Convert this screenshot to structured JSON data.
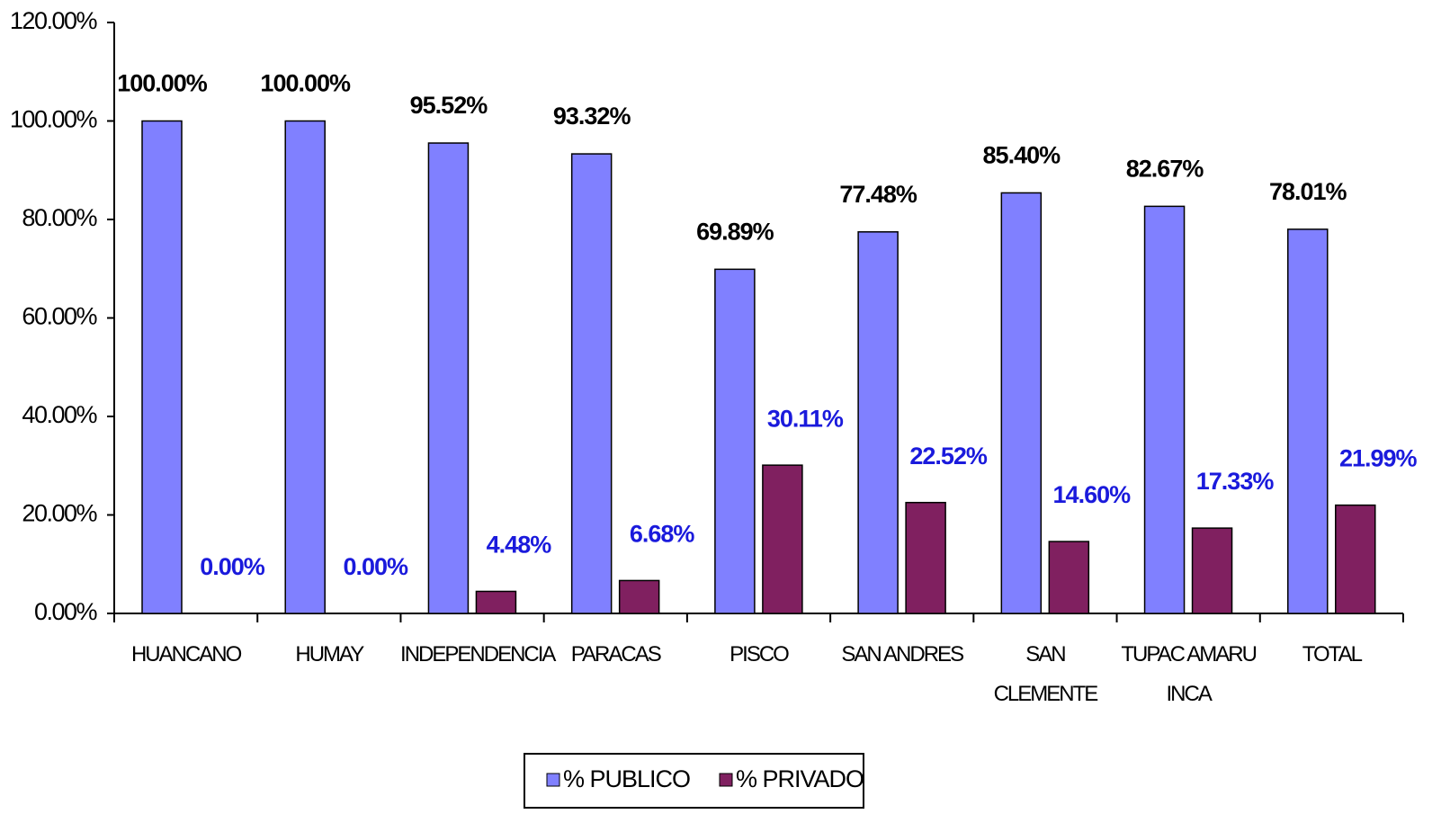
{
  "chart_data": {
    "type": "bar",
    "categories": [
      "HUANCANO",
      "HUMAY",
      "INDEPENDENCIA",
      "PARACAS",
      "PISCO",
      "SAN ANDRES",
      "SAN CLEMENTE",
      "TUPAC AMARU INCA",
      "TOTAL"
    ],
    "series": [
      {
        "name": "% PUBLICO",
        "color": "#8080ff",
        "label_color": "#000000",
        "values": [
          100,
          100,
          95.52,
          93.32,
          69.89,
          77.48,
          85.4,
          82.67,
          78.01
        ],
        "value_labels": [
          "100.00%",
          "100.00%",
          "95.52%",
          "93.32%",
          "69.89%",
          "77.48%",
          "85.40%",
          "82.67%",
          "78.01%"
        ]
      },
      {
        "name": "% PRIVADO",
        "color": "#802060",
        "label_color": "#1a1adc",
        "values": [
          0,
          0,
          4.48,
          6.68,
          30.11,
          22.52,
          14.6,
          17.33,
          21.99
        ],
        "value_labels": [
          "0.00%",
          "0.00%",
          "4.48%",
          "6.68%",
          "30.11%",
          "22.52%",
          "14.60%",
          "17.33%",
          "21.99%"
        ]
      }
    ],
    "ylim": [
      0,
      120
    ],
    "yticks": [
      {
        "value": 0,
        "label": "0.00%"
      },
      {
        "value": 20,
        "label": "20.00%"
      },
      {
        "value": 40,
        "label": "40.00%"
      },
      {
        "value": 60,
        "label": "60.00%"
      },
      {
        "value": 80,
        "label": "80.00%"
      },
      {
        "value": 100,
        "label": "100.00%"
      },
      {
        "value": 120,
        "label": "120.00%"
      }
    ],
    "legend": "bottom"
  }
}
